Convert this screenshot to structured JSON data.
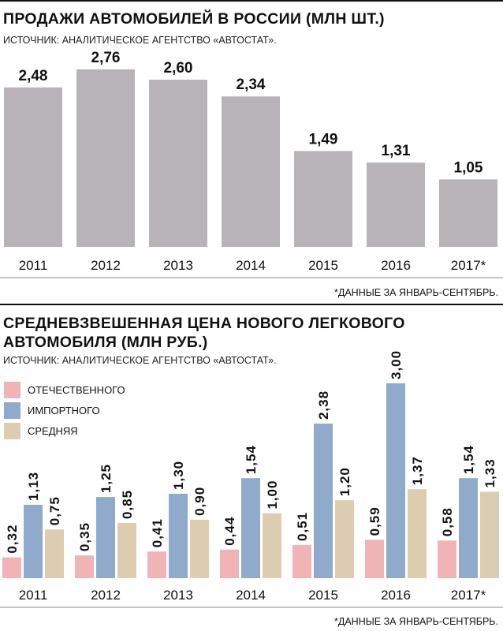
{
  "chart_data": [
    {
      "type": "bar",
      "title": "ПРОДАЖИ АВТОМОБИЛЕЙ В РОССИИ (МЛН ШТ.)",
      "subtitle": "ИСТОЧНИК: АНАЛИТИЧЕСКОЕ АГЕНТСТВО «АВТОСТАТ».",
      "categories": [
        "2011",
        "2012",
        "2013",
        "2014",
        "2015",
        "2016",
        "2017*"
      ],
      "values": [
        2.48,
        2.76,
        2.6,
        2.34,
        1.49,
        1.31,
        1.05
      ],
      "value_labels": [
        "2,48",
        "2,76",
        "2,60",
        "2,34",
        "1,49",
        "1,31",
        "1,05"
      ],
      "color": "#b7b3b6",
      "note": "*ДАННЫЕ ЗА ЯНВАРЬ-СЕНТЯБРЬ."
    },
    {
      "type": "grouped_bar",
      "title": "СРЕДНЕВЗВЕШЕННАЯ ЦЕНА НОВОГО ЛЕГКОВОГО АВТОМОБИЛЯ (МЛН РУБ.)",
      "subtitle": "ИСТОЧНИК: АНАЛИТИЧЕСКОЕ АГЕНТСТВО «АВТОСТАТ».",
      "categories": [
        "2011",
        "2012",
        "2013",
        "2014",
        "2015",
        "2016",
        "2017*"
      ],
      "series": [
        {
          "name": "ОТЕЧЕСТВЕННОГО",
          "color": "#f0b3b6",
          "values": [
            0.32,
            0.35,
            0.41,
            0.44,
            0.51,
            0.59,
            0.58
          ],
          "value_labels": [
            "0,32",
            "0,35",
            "0,41",
            "0,44",
            "0,51",
            "0,59",
            "0,58"
          ]
        },
        {
          "name": "ИМПОРТНОГО",
          "color": "#8faacb",
          "values": [
            1.13,
            1.25,
            1.3,
            1.54,
            2.38,
            3.0,
            1.54
          ],
          "value_labels": [
            "1,13",
            "1,25",
            "1,30",
            "1,54",
            "2,38",
            "3,00",
            "1,54"
          ]
        },
        {
          "name": "СРЕДНЯЯ",
          "color": "#dccdb0",
          "values": [
            0.75,
            0.85,
            0.9,
            1.0,
            1.2,
            1.37,
            1.33
          ],
          "value_labels": [
            "0,75",
            "0,85",
            "0,90",
            "1,00",
            "1,20",
            "1,37",
            "1,33"
          ]
        }
      ],
      "legend": "top-left",
      "note": "*ДАННЫЕ ЗА ЯНВАРЬ-СЕНТЯБРЬ."
    }
  ]
}
